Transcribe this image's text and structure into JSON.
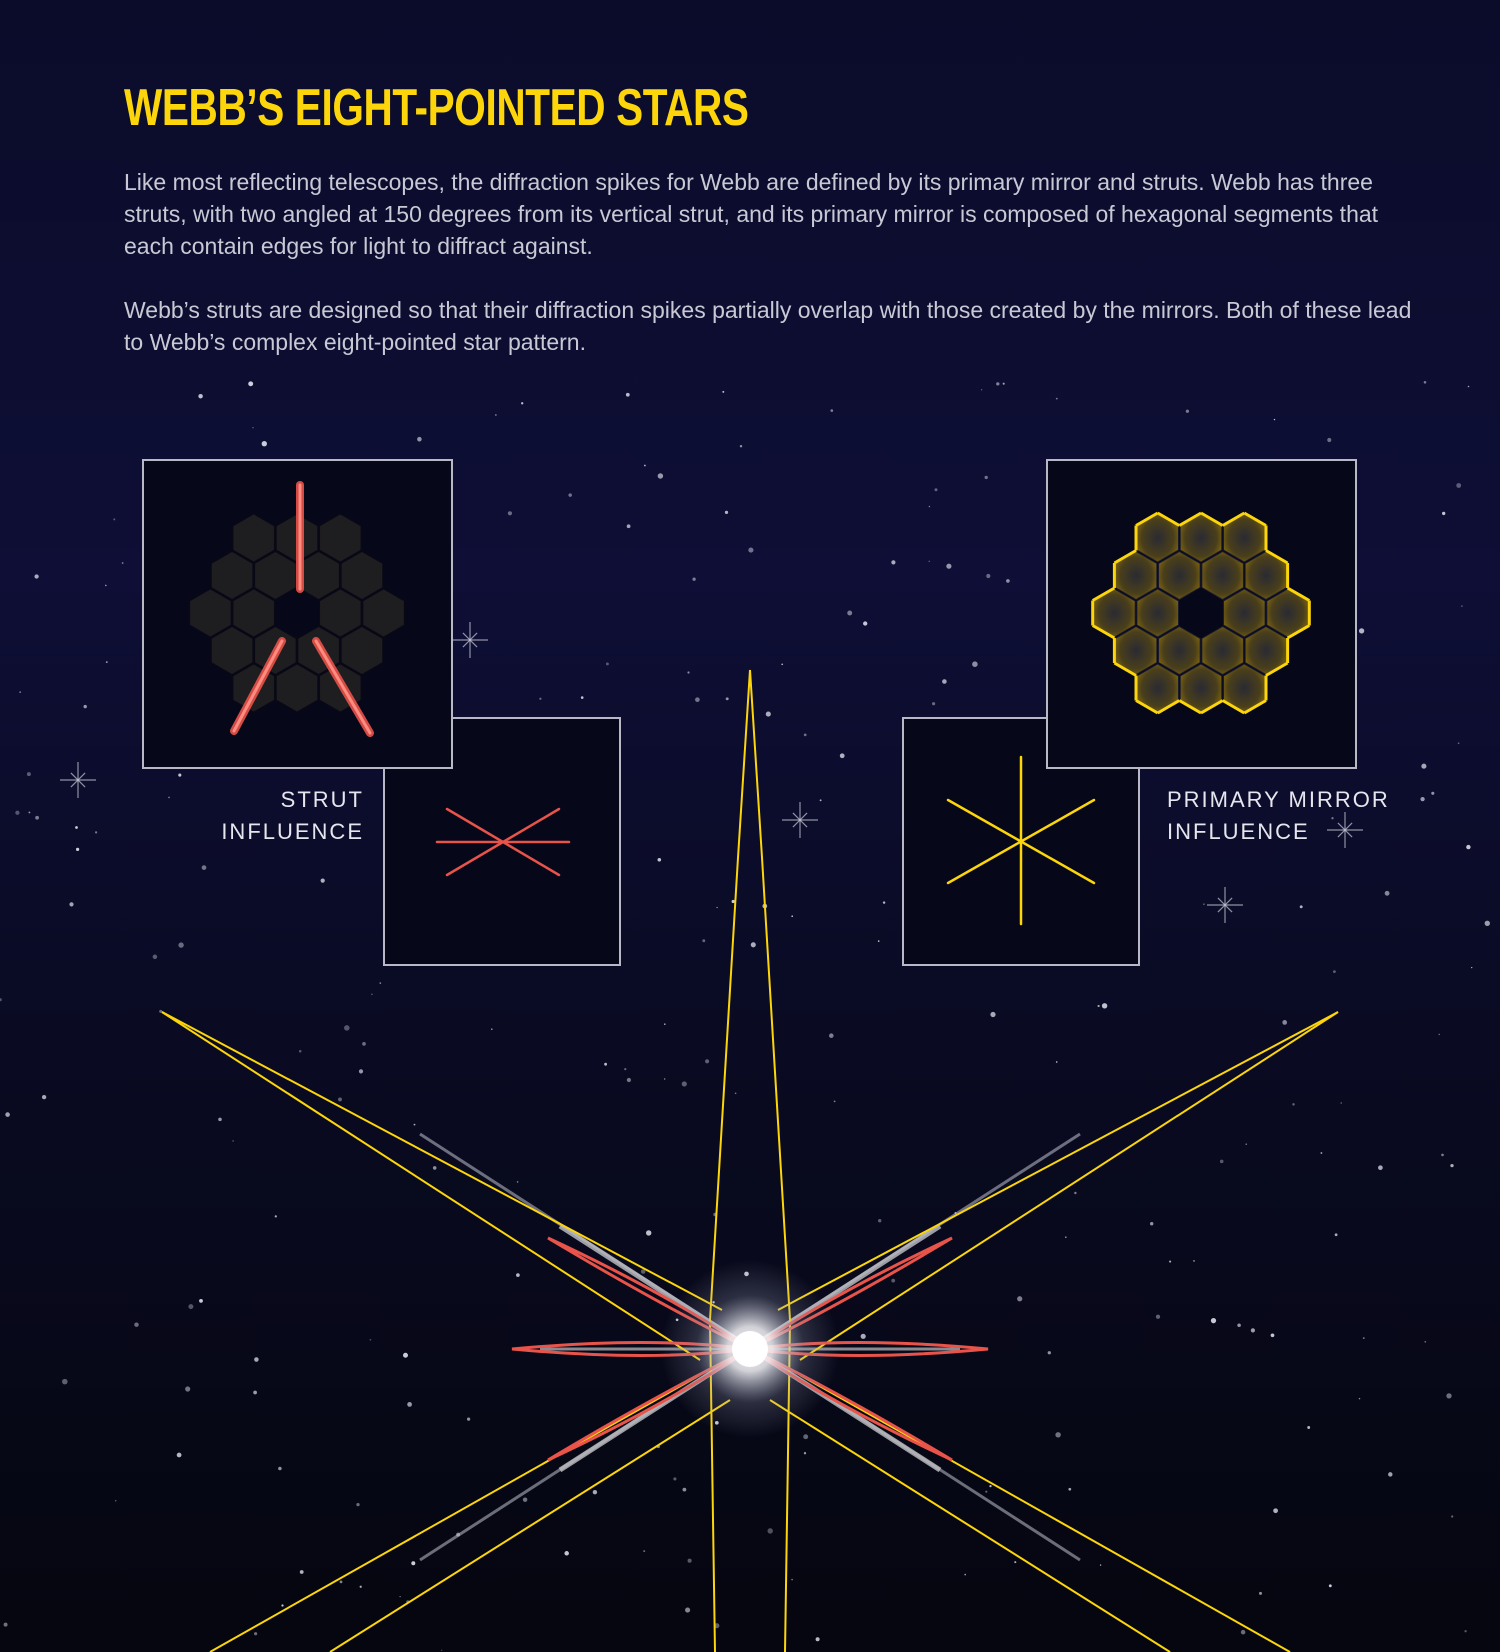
{
  "title": "WEBB’S EIGHT-POINTED STARS",
  "paragraphs": [
    "Like most reflecting telescopes, the diffraction spikes for Webb are defined by its primary mirror and struts. Webb has three struts, with two angled at 150 degrees from its vertical strut, and its primary mirror is composed of hexagonal segments that each contain edges for light to diffract against.",
    "Webb’s struts are designed so that their diffraction spikes partially overlap with those created by the mirrors. Both of these lead to Webb’s complex eight-pointed star pattern."
  ],
  "labels": {
    "strut_line1": "STRUT",
    "strut_line2": "INFLUENCE",
    "mirror_line1": "PRIMARY MIRROR",
    "mirror_line2": "INFLUENCE"
  },
  "colors": {
    "title": "#fcd50b",
    "mirror_outline": "#fcd50b",
    "strut_spike": "#e8534a",
    "panel_border": "#b8b8c6",
    "background": "#0b0c2a"
  },
  "diagram": {
    "strut_angle_degrees": 150,
    "strut_count": 3,
    "star_points": 8
  }
}
